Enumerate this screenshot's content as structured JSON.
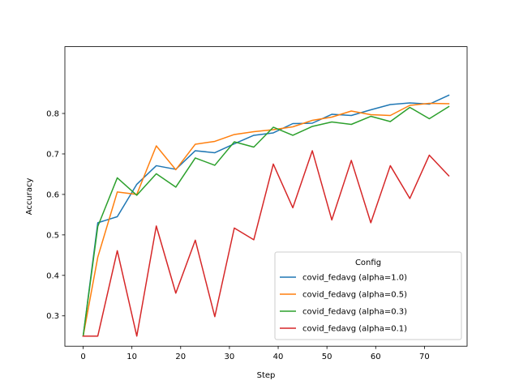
{
  "chart_data": {
    "type": "line",
    "xlabel": "Step",
    "ylabel": "Accuracy",
    "xlim": [
      -3.75,
      78.75
    ],
    "ylim": [
      0.225,
      0.965
    ],
    "xticks": [
      0,
      10,
      20,
      30,
      40,
      50,
      60,
      70
    ],
    "yticks": [
      0.3,
      0.4,
      0.5,
      0.6,
      0.7,
      0.8
    ],
    "grid": false,
    "legend": {
      "title": "Config",
      "placement": "lower-right"
    },
    "x": [
      0,
      3,
      7,
      11,
      15,
      19,
      23,
      27,
      31,
      35,
      39,
      43,
      47,
      51,
      55,
      59,
      63,
      67,
      71,
      75
    ],
    "series": [
      {
        "name": "covid_fedavg (alpha=1.0)",
        "color": "#1f77b4",
        "values": [
          0.25,
          0.53,
          0.545,
          0.625,
          0.671,
          0.662,
          0.708,
          0.703,
          0.725,
          0.746,
          0.752,
          0.775,
          0.776,
          0.798,
          0.795,
          0.809,
          0.822,
          0.826,
          0.823,
          0.845
        ]
      },
      {
        "name": "covid_fedavg (alpha=0.5)",
        "color": "#ff7f0e",
        "values": [
          0.25,
          0.445,
          0.606,
          0.6,
          0.72,
          0.661,
          0.724,
          0.731,
          0.748,
          0.755,
          0.76,
          0.767,
          0.783,
          0.791,
          0.806,
          0.797,
          0.795,
          0.82,
          0.825,
          0.824
        ]
      },
      {
        "name": "covid_fedavg (alpha=0.3)",
        "color": "#2ca02c",
        "values": [
          0.25,
          0.521,
          0.641,
          0.598,
          0.651,
          0.618,
          0.69,
          0.672,
          0.73,
          0.717,
          0.766,
          0.746,
          0.768,
          0.779,
          0.773,
          0.793,
          0.78,
          0.815,
          0.787,
          0.817
        ]
      },
      {
        "name": "covid_fedavg (alpha=0.1)",
        "color": "#d62728",
        "values": [
          0.25,
          0.25,
          0.461,
          0.25,
          0.522,
          0.356,
          0.487,
          0.298,
          0.517,
          0.488,
          0.675,
          0.567,
          0.708,
          0.537,
          0.684,
          0.53,
          0.671,
          0.59,
          0.697,
          0.646
        ]
      }
    ]
  }
}
